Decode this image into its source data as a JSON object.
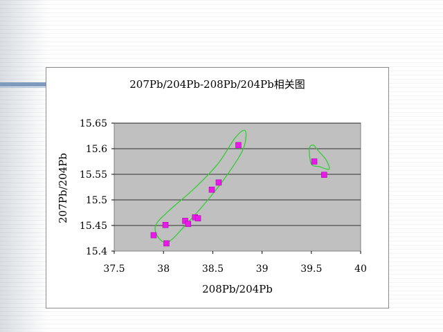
{
  "chart_data": {
    "type": "scatter",
    "title": "207Pb/204Pb-208Pb/204Pb相关图",
    "xlabel": "208Pb/204Pb",
    "ylabel": "207Pb/204Pb",
    "xlim": [
      37.5,
      40
    ],
    "ylim": [
      15.4,
      15.65
    ],
    "x_ticks": [
      "37.5",
      "38",
      "38.5",
      "39",
      "39.5",
      "40"
    ],
    "y_ticks": [
      "15.4",
      "15.45",
      "15.5",
      "15.55",
      "15.6",
      "15.65"
    ],
    "grid": true,
    "legend": "none",
    "plot_background": "#c0c0c0",
    "marker_color": "#e81ae8",
    "outline_color": "#33cc33",
    "series": [
      {
        "points": [
          [
            37.9,
            15.431
          ],
          [
            38.02,
            15.451
          ],
          [
            38.03,
            15.415
          ],
          [
            38.22,
            15.459
          ],
          [
            38.25,
            15.453
          ],
          [
            38.32,
            15.466
          ],
          [
            38.35,
            15.464
          ],
          [
            38.49,
            15.52
          ],
          [
            38.56,
            15.534
          ],
          [
            38.76,
            15.607
          ],
          [
            39.53,
            15.575
          ],
          [
            39.63,
            15.549
          ]
        ]
      }
    ]
  }
}
